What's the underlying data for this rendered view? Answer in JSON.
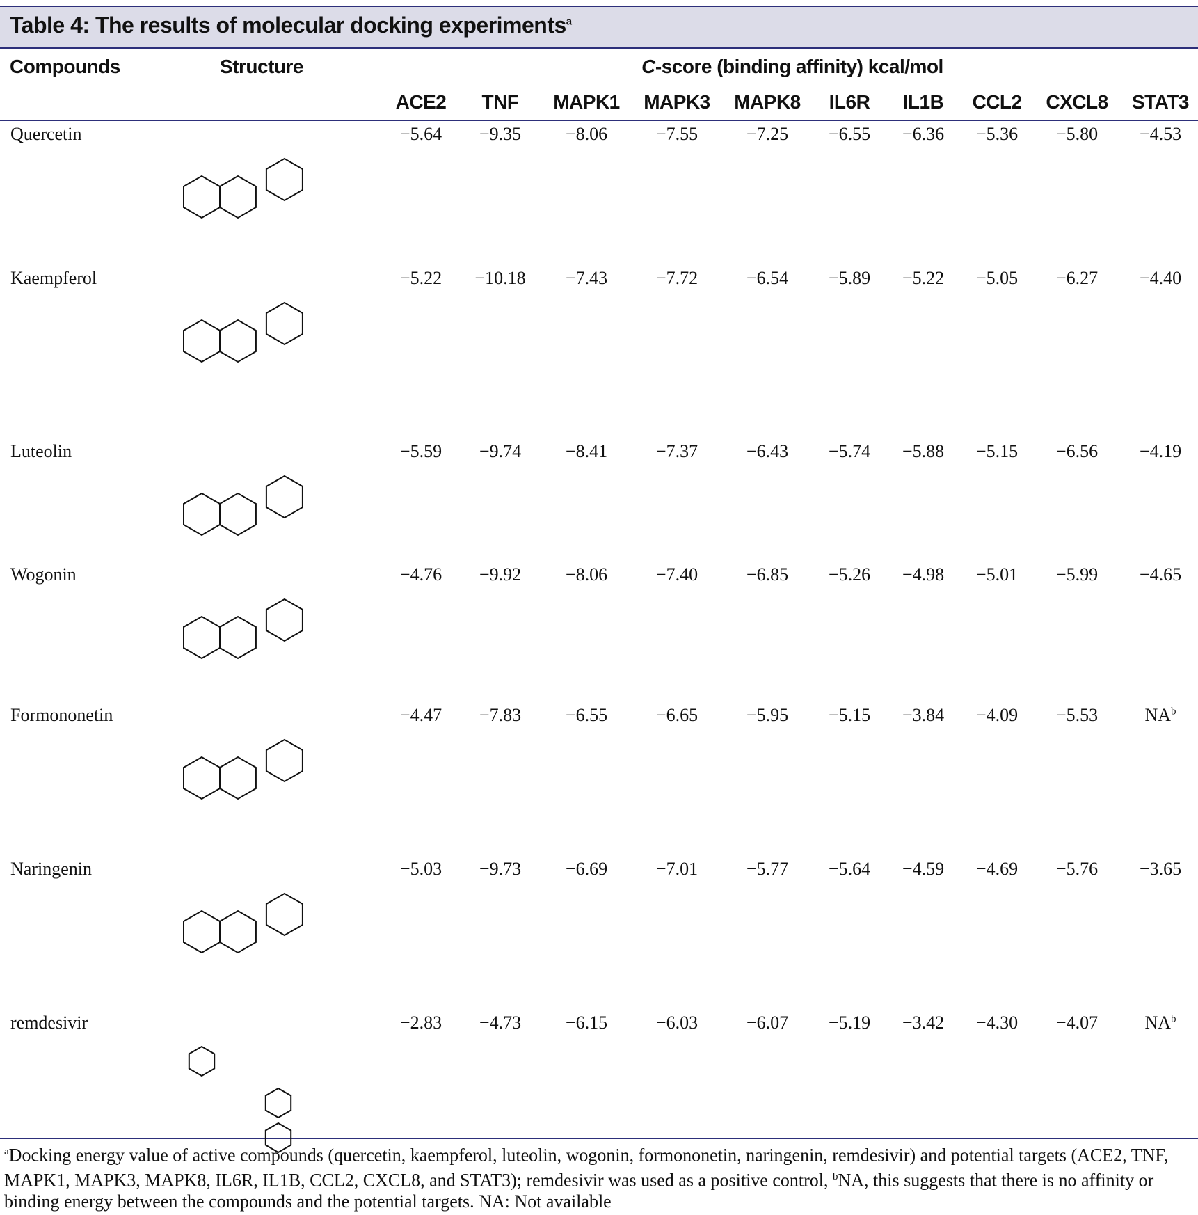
{
  "table": {
    "title": "Table 4: The results of molecular docking experiments",
    "title_note": "a",
    "headers": {
      "compounds": "Compounds",
      "structure": "Structure",
      "cscore_prefix": "C",
      "cscore": "-score (binding affinity) kcal/mol",
      "columns": [
        "ACE2",
        "TNF",
        "MAPK1",
        "MAPK3",
        "MAPK8",
        "IL6R",
        "IL1B",
        "CCL2",
        "CXCL8",
        "STAT3"
      ]
    },
    "rows": [
      {
        "compound": "Quercetin",
        "values": [
          "−5.64",
          "−9.35",
          "−8.06",
          "−7.55",
          "−7.25",
          "−6.55",
          "−6.36",
          "−5.36",
          "−5.80",
          "−4.53"
        ]
      },
      {
        "compound": "Kaempferol",
        "values": [
          "−5.22",
          "−10.18",
          "−7.43",
          "−7.72",
          "−6.54",
          "−5.89",
          "−5.22",
          "−5.05",
          "−6.27",
          "−4.40"
        ]
      },
      {
        "compound": "Luteolin",
        "values": [
          "−5.59",
          "−9.74",
          "−8.41",
          "−7.37",
          "−6.43",
          "−5.74",
          "−5.88",
          "−5.15",
          "−6.56",
          "−4.19"
        ]
      },
      {
        "compound": "Wogonin",
        "values": [
          "−4.76",
          "−9.92",
          "−8.06",
          "−7.40",
          "−6.85",
          "−5.26",
          "−4.98",
          "−5.01",
          "−5.99",
          "−4.65"
        ]
      },
      {
        "compound": "Formononetin",
        "values": [
          "−4.47",
          "−7.83",
          "−6.55",
          "−6.65",
          "−5.95",
          "−5.15",
          "−3.84",
          "−4.09",
          "−5.53",
          {
            "text": "NA",
            "note": "b"
          }
        ]
      },
      {
        "compound": "Naringenin",
        "values": [
          "−5.03",
          "−9.73",
          "−6.69",
          "−7.01",
          "−5.77",
          "−5.64",
          "−4.59",
          "−4.69",
          "−5.76",
          "−3.65"
        ]
      },
      {
        "compound": "remdesivir",
        "values": [
          "−2.83",
          "−4.73",
          "−6.15",
          "−6.03",
          "−6.07",
          "−5.19",
          "−3.42",
          "−4.30",
          "−4.07",
          {
            "text": "NA",
            "note": "b"
          }
        ]
      }
    ]
  },
  "footnote": {
    "note_a": "a",
    "text_a": "Docking energy value of active compounds (quercetin, kaempferol, luteolin, wogonin, formononetin, naringenin, remdesivir) and potential targets (ACE2, TNF, MAPK1, MAPK3, MAPK8, IL6R, IL1B, CCL2, CXCL8, and STAT3); remdesivir was used as a positive control, ",
    "note_b": "b",
    "text_b": "NA, this suggests that there is no affinity or binding energy between the compounds and the potential targets. NA: Not available"
  }
}
